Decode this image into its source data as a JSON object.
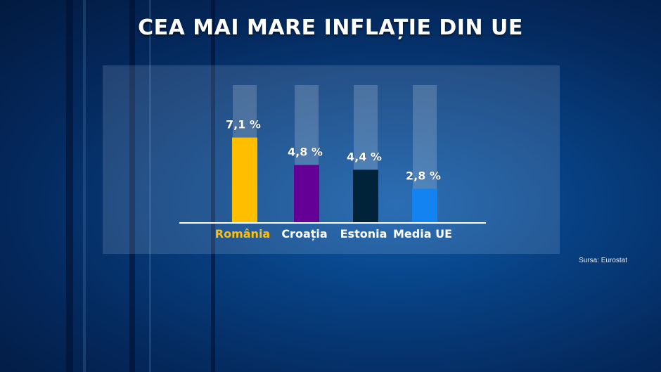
{
  "title": "CEA MAI MARE INFLAȚIE DIN UE",
  "source": "Sursa: Eurostat",
  "chart_data": {
    "type": "bar",
    "categories": [
      "România",
      "Croația",
      "Estonia",
      "Media UE"
    ],
    "values": [
      7.1,
      4.8,
      4.4,
      2.8
    ],
    "value_labels": [
      "7,1 %",
      "4,8 %",
      "4,4 %",
      "2,8 %"
    ],
    "colors": [
      "#ffbf00",
      "#650096",
      "#00233a",
      "#1383f2"
    ],
    "label_colors": [
      "#ffc107",
      "#ffffff",
      "#ffffff",
      "#ffffff"
    ],
    "ylim": [
      0,
      11.5
    ],
    "grid": false,
    "title": "CEA MAI MARE INFLAȚIE DIN UE",
    "xlabel": "",
    "ylabel": ""
  }
}
